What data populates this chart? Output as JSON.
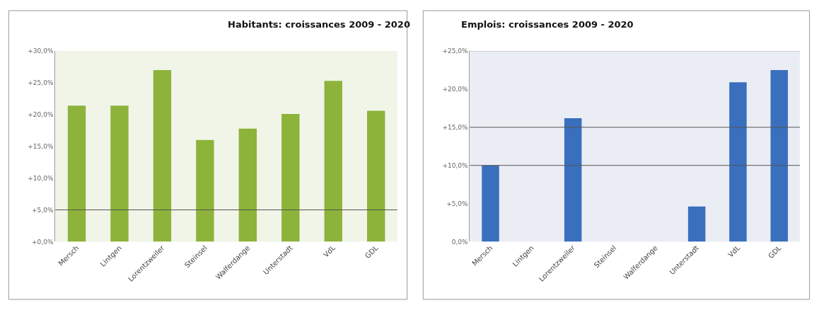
{
  "chart_data": [
    {
      "type": "bar",
      "title": "Habitants: croissances 2009 - 2020",
      "categories": [
        "Mersch",
        "Lintgen",
        "Lorentzweiler",
        "Steinsel",
        "Walferdange",
        "Unterstadt",
        "VdL",
        "GDL"
      ],
      "series": [
        {
          "color": "#8db33a",
          "values": [
            21.4,
            21.4,
            27.0,
            16.0,
            17.8,
            20.1,
            25.3,
            20.6
          ]
        }
      ],
      "ylim": [
        0,
        30
      ],
      "yticks": [
        {
          "value": 0,
          "label": "+0,0%"
        },
        {
          "value": 5,
          "label": "+5,0%"
        },
        {
          "value": 10,
          "label": "+10,0%"
        },
        {
          "value": 15,
          "label": "+15,0%"
        },
        {
          "value": 20,
          "label": "+20,0%"
        },
        {
          "value": 25,
          "label": "+25,0%"
        },
        {
          "value": 30,
          "label": "+30,0%"
        }
      ],
      "grid": false,
      "ref_lines": [
        {
          "axis": "y",
          "value": 5,
          "color": "#555555"
        }
      ]
    },
    {
      "type": "bar",
      "title": "Emplois: croissances 2009 - 2020",
      "categories": [
        "Mersch",
        "Lintgen",
        "Lorentzweiler",
        "Steinsel",
        "Walferdange",
        "Unterstadt",
        "VdL",
        "GDL"
      ],
      "series": [
        {
          "color": "#3a6fbd",
          "values": [
            10.0,
            null,
            16.2,
            null,
            null,
            4.6,
            20.9,
            22.5
          ]
        }
      ],
      "ylim": [
        0,
        25
      ],
      "yticks": [
        {
          "value": 0,
          "label": "0,0%"
        },
        {
          "value": 5,
          "label": "+5,0%"
        },
        {
          "value": 10,
          "label": "+10,0%"
        },
        {
          "value": 15,
          "label": "+15,0%"
        },
        {
          "value": 20,
          "label": "+20,0%"
        },
        {
          "value": 25,
          "label": "+25,0%"
        }
      ],
      "grid": false,
      "ref_lines": [
        {
          "axis": "y",
          "value": 10,
          "color": "#555555"
        },
        {
          "axis": "y",
          "value": 15,
          "color": "#555555"
        },
        {
          "axis": "y",
          "value": 25,
          "color": "#bbbbbb"
        }
      ]
    }
  ]
}
